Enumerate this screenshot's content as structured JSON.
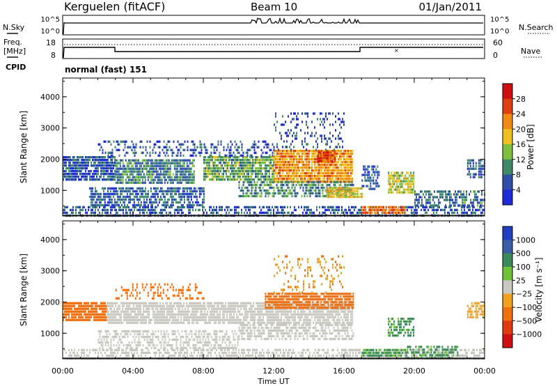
{
  "header": {
    "station": "Kerguelen (fitACF)",
    "beam": "Beam 10",
    "date": "01/Jan/2011"
  },
  "top_panels": {
    "nsky_label": "N.Sky",
    "nsearch_label": "N.Search",
    "count_ticks": [
      "10^5",
      "10^0"
    ],
    "freq_label_line1": "Freq.",
    "freq_label_line2": "[MHz]",
    "freq_ticks": [
      "18",
      "8"
    ],
    "nave_label": "Nave",
    "nave_ticks": [
      "60",
      "0"
    ],
    "cpid_label": "CPID",
    "cpid_value": "normal (fast) 151"
  },
  "colors": {
    "power": [
      "#1f2bd8",
      "#2f4fa8",
      "#3f8a6a",
      "#7fbf3f",
      "#f0c020",
      "#f08a10",
      "#e04010",
      "#d01010"
    ],
    "velocity": [
      "#2040c0",
      "#3a5fa8",
      "#3a8a5a",
      "#6ec23a",
      "#c8c8c0",
      "#f0a020",
      "#f07010",
      "#e03a10",
      "#d01010"
    ]
  },
  "chart_data": [
    {
      "type": "heatmap",
      "quantity": "Power",
      "ylabel": "Slant Range [km]",
      "xlabel": "",
      "colorbar_label": "Power [dB]",
      "colorbar_ticks": [
        "28",
        "24",
        "20",
        "16",
        "12",
        "8",
        "4"
      ],
      "colorbar_range": [
        0,
        32
      ],
      "ylim": [
        180,
        4600
      ],
      "y_ticks": [
        "4000",
        "3000",
        "2000",
        "1000"
      ],
      "x_ticks": [
        "00:00",
        "04:00",
        "08:00",
        "12:00",
        "16:00",
        "20:00",
        "00:00"
      ],
      "xlim_hours": [
        0,
        24
      ],
      "regions": [
        {
          "t0": 0.0,
          "t1": 24.0,
          "r0": 200,
          "r1": 500,
          "level": 6,
          "density": 0.55
        },
        {
          "t0": 0.0,
          "t1": 3.0,
          "r0": 1300,
          "r1": 2100,
          "level": 6,
          "density": 0.85
        },
        {
          "t0": 3.0,
          "t1": 7.5,
          "r0": 1200,
          "r1": 2000,
          "level": 9,
          "density": 0.8
        },
        {
          "t0": 1.5,
          "t1": 8.0,
          "r0": 500,
          "r1": 1100,
          "level": 7,
          "density": 0.7
        },
        {
          "t0": 8.0,
          "t1": 12.0,
          "r0": 1300,
          "r1": 2100,
          "level": 12,
          "density": 0.85
        },
        {
          "t0": 12.0,
          "t1": 16.5,
          "r0": 1300,
          "r1": 2300,
          "level": 21,
          "density": 0.9
        },
        {
          "t0": 10.0,
          "t1": 16.5,
          "r0": 800,
          "r1": 1300,
          "level": 10,
          "density": 0.6
        },
        {
          "t0": 14.5,
          "t1": 15.5,
          "r0": 1950,
          "r1": 2250,
          "level": 27,
          "density": 0.95
        },
        {
          "t0": 15.0,
          "t1": 17.0,
          "r0": 800,
          "r1": 1100,
          "level": 18,
          "density": 0.9
        },
        {
          "t0": 17.0,
          "t1": 19.5,
          "r0": 300,
          "r1": 500,
          "level": 24,
          "density": 0.85
        },
        {
          "t0": 18.5,
          "t1": 20.0,
          "r0": 900,
          "r1": 1600,
          "level": 16,
          "density": 0.8
        },
        {
          "t0": 17.0,
          "t1": 18.0,
          "r0": 1000,
          "r1": 1800,
          "level": 6,
          "density": 0.55
        },
        {
          "t0": 20.0,
          "t1": 24.0,
          "r0": 500,
          "r1": 1000,
          "level": 8,
          "density": 0.55
        },
        {
          "t0": 23.0,
          "t1": 24.0,
          "r0": 1400,
          "r1": 2000,
          "level": 7,
          "density": 0.6
        },
        {
          "t0": 2.0,
          "t1": 12.0,
          "r0": 2100,
          "r1": 2600,
          "level": 5,
          "density": 0.35
        },
        {
          "t0": 12.0,
          "t1": 16.0,
          "r0": 2300,
          "r1": 3500,
          "level": 5,
          "density": 0.18
        }
      ]
    },
    {
      "type": "heatmap",
      "quantity": "Velocity",
      "ylabel": "Slant Range [km]",
      "xlabel": "Time UT",
      "colorbar_label": "Velocity [m s⁻¹]",
      "colorbar_ticks": [
        "1000",
        "500",
        "100",
        "25",
        "−25",
        "−100",
        "−500",
        "−1000"
      ],
      "colorbar_range": [
        -1000,
        1000
      ],
      "ylim": [
        180,
        4600
      ],
      "y_ticks": [
        "4000",
        "3000",
        "2000",
        "1000"
      ],
      "x_ticks": [
        "00:00",
        "04:00",
        "08:00",
        "12:00",
        "16:00",
        "20:00",
        "00:00"
      ],
      "xlim_hours": [
        0,
        24
      ],
      "regions": [
        {
          "t0": 0.0,
          "t1": 24.0,
          "r0": 200,
          "r1": 500,
          "level": 0,
          "density": 0.55
        },
        {
          "t0": 0.0,
          "t1": 2.5,
          "r0": 1400,
          "r1": 2000,
          "level": -300,
          "density": 0.85
        },
        {
          "t0": 2.5,
          "t1": 16.5,
          "r0": 1300,
          "r1": 2000,
          "level": 0,
          "density": 0.8
        },
        {
          "t0": 2.0,
          "t1": 10.0,
          "r0": 500,
          "r1": 1100,
          "level": 0,
          "density": 0.55
        },
        {
          "t0": 11.5,
          "t1": 16.5,
          "r0": 1800,
          "r1": 2300,
          "level": -300,
          "density": 0.85
        },
        {
          "t0": 10.0,
          "t1": 16.5,
          "r0": 800,
          "r1": 1300,
          "level": 0,
          "density": 0.6
        },
        {
          "t0": 17.0,
          "t1": 19.5,
          "r0": 300,
          "r1": 500,
          "level": 150,
          "density": 0.8
        },
        {
          "t0": 19.5,
          "t1": 22.5,
          "r0": 200,
          "r1": 600,
          "level": 150,
          "density": 0.55
        },
        {
          "t0": 18.5,
          "t1": 20.0,
          "r0": 900,
          "r1": 1500,
          "level": 120,
          "density": 0.55
        },
        {
          "t0": 23.0,
          "t1": 24.0,
          "r0": 1500,
          "r1": 2000,
          "level": -60,
          "density": 0.55
        },
        {
          "t0": 3.0,
          "t1": 8.0,
          "r0": 2100,
          "r1": 2600,
          "level": -300,
          "density": 0.3
        },
        {
          "t0": 12.0,
          "t1": 16.0,
          "r0": 2300,
          "r1": 3500,
          "level": -80,
          "density": 0.16
        }
      ]
    }
  ]
}
